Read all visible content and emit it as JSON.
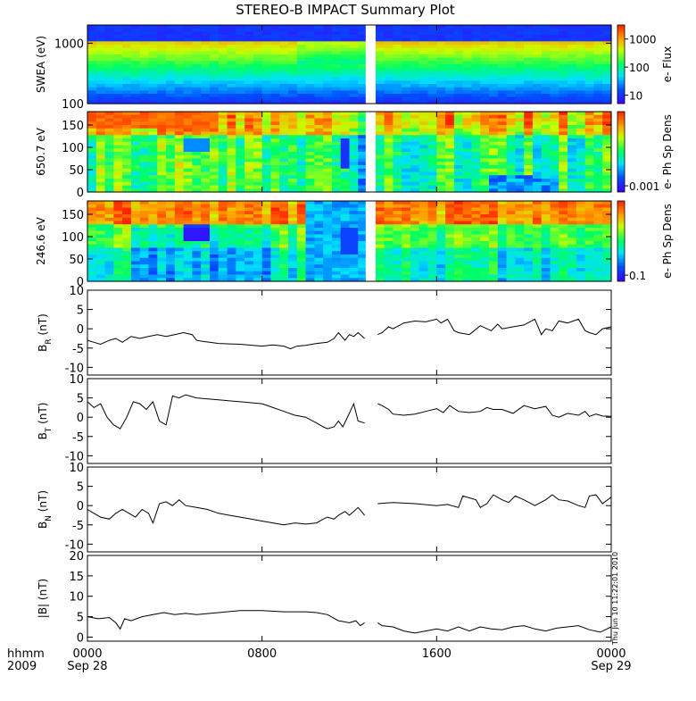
{
  "chart_data": {
    "type": "line",
    "title": "STEREO-B IMPACT Summary Plot",
    "x_axis": {
      "label_lines": [
        "hhmm",
        "2009"
      ],
      "range_hours": [
        0,
        24
      ],
      "ticks": [
        {
          "hour": 0,
          "label": "0000",
          "sublabel": "Sep 28"
        },
        {
          "hour": 8,
          "label": "0800",
          "sublabel": ""
        },
        {
          "hour": 16,
          "label": "1600",
          "sublabel": ""
        },
        {
          "hour": 24,
          "label": "0000",
          "sublabel": "Sep 29"
        }
      ]
    },
    "data_gap_hours": [
      12.75,
      13.2
    ],
    "timestamp": "Thu Jun 10 11:22:01 2010",
    "spectrograms": [
      {
        "ylabel": "SWEA (eV)",
        "yscale": "log",
        "yrange": [
          100,
          2000
        ],
        "yticks": [
          {
            "v": 100,
            "label": "100"
          },
          {
            "v": 1000,
            "label": "1000"
          }
        ],
        "colorbar_label": "e- Flux",
        "colorbar_ticks": [
          {
            "v": 10,
            "label": "10"
          },
          {
            "v": 100,
            "label": "100"
          },
          {
            "v": 1000,
            "label": "1000"
          }
        ],
        "colorbar_range_log": [
          0.7,
          3.5
        ]
      },
      {
        "ylabel": "650.7 eV",
        "yscale": "linear",
        "yrange": [
          0,
          180
        ],
        "yticks": [
          {
            "v": 0,
            "label": "0"
          },
          {
            "v": 50,
            "label": "50"
          },
          {
            "v": 100,
            "label": "100"
          },
          {
            "v": 150,
            "label": "150"
          }
        ],
        "colorbar_label": "e- Ph Sp Dens",
        "colorbar_ticks": [
          {
            "v": 0.001,
            "label": "0.001"
          }
        ],
        "colorbar_range_log": [
          -3.1,
          -1.8
        ]
      },
      {
        "ylabel": "246.6 eV",
        "yscale": "linear",
        "yrange": [
          0,
          180
        ],
        "yticks": [
          {
            "v": 0,
            "label": "0"
          },
          {
            "v": 50,
            "label": "50"
          },
          {
            "v": 100,
            "label": "100"
          },
          {
            "v": 150,
            "label": "150"
          }
        ],
        "colorbar_label": "e- Ph Sp Dens",
        "colorbar_ticks": [
          {
            "v": 0.1,
            "label": "0.1"
          }
        ],
        "colorbar_range_log": [
          -1.1,
          0.2
        ]
      }
    ],
    "line_panels": [
      {
        "ylabel_base": "B",
        "ylabel_sub": "R",
        "ylabel_unit": " (nT)",
        "yrange": [
          -12,
          10
        ],
        "yticks": [
          {
            "v": -10,
            "label": "-10"
          },
          {
            "v": -5,
            "label": "-5"
          },
          {
            "v": 0,
            "label": "0"
          },
          {
            "v": 5,
            "label": "5"
          },
          {
            "v": 10,
            "label": "10"
          }
        ],
        "x": [
          0,
          0.3,
          0.6,
          1,
          1.3,
          1.6,
          2,
          2.4,
          2.8,
          3.2,
          3.6,
          4,
          4.4,
          4.8,
          5,
          5.3,
          5.6,
          6,
          7,
          8,
          8.5,
          9,
          9.3,
          9.6,
          10,
          10.5,
          11,
          11.3,
          11.5,
          11.8,
          12,
          12.2,
          12.4,
          12.7,
          13.3,
          13.5,
          13.8,
          14,
          14.5,
          15,
          15.5,
          16,
          16.2,
          16.5,
          16.8,
          17,
          17.5,
          18,
          18.5,
          18.8,
          19,
          19.5,
          20,
          20.5,
          20.8,
          21,
          21.3,
          21.6,
          22,
          22.5,
          22.8,
          23,
          23.3,
          23.6,
          24
        ],
        "y": [
          -3,
          -3.5,
          -4,
          -3,
          -2.5,
          -3.5,
          -2,
          -2.5,
          -2,
          -1.5,
          -2,
          -1.5,
          -1,
          -1.5,
          -3,
          -3.3,
          -3.5,
          -3.8,
          -4,
          -4.5,
          -4.2,
          -4.5,
          -5.2,
          -4.5,
          -4.3,
          -3.8,
          -3.5,
          -2.5,
          -1,
          -3,
          -1.5,
          -2,
          -1,
          -2.5,
          -1.5,
          -1,
          0.5,
          0,
          1.5,
          2,
          1.8,
          2.5,
          1.5,
          2.5,
          -0.5,
          -1,
          -1.5,
          0.8,
          -0.5,
          1.2,
          0,
          0.5,
          1,
          2.5,
          -1.5,
          0,
          -0.5,
          2,
          1.5,
          2.5,
          -0.5,
          -1,
          -1.5,
          0,
          0.5
        ]
      },
      {
        "ylabel_base": "B",
        "ylabel_sub": "T",
        "ylabel_unit": " (nT)",
        "yrange": [
          -12,
          10
        ],
        "yticks": [
          {
            "v": -10,
            "label": "-10"
          },
          {
            "v": -5,
            "label": "-5"
          },
          {
            "v": 0,
            "label": "0"
          },
          {
            "v": 5,
            "label": "5"
          },
          {
            "v": 10,
            "label": "10"
          }
        ],
        "x": [
          0,
          0.3,
          0.6,
          0.9,
          1.2,
          1.5,
          1.8,
          2.1,
          2.4,
          2.7,
          3,
          3.3,
          3.6,
          3.9,
          4.2,
          4.5,
          5,
          6,
          7,
          8,
          8.5,
          9,
          9.5,
          10,
          10.5,
          10.8,
          11,
          11.3,
          11.5,
          11.7,
          12,
          12.2,
          12.4,
          12.7,
          13.3,
          13.5,
          13.8,
          14,
          14.5,
          15,
          15.5,
          16,
          16.3,
          16.6,
          17,
          17.5,
          18,
          18.3,
          18.6,
          19,
          19.5,
          20,
          20.5,
          21,
          21.3,
          21.6,
          22,
          22.5,
          22.8,
          23,
          23.3,
          23.6,
          24
        ],
        "y": [
          4,
          2.5,
          3.5,
          0,
          -2,
          -3,
          0,
          4,
          3.5,
          2,
          4,
          -1,
          -2,
          5.5,
          5,
          5.8,
          5,
          4.5,
          4,
          3.5,
          2.5,
          1.5,
          0.5,
          0,
          -1.5,
          -2.5,
          -3,
          -2.5,
          -1,
          -2.5,
          1,
          3.5,
          -1,
          -1.5,
          3.5,
          3,
          2,
          0.8,
          0.5,
          0.8,
          1.5,
          2.2,
          1.2,
          3,
          1.5,
          1.2,
          1.5,
          2.5,
          2,
          2,
          1,
          3,
          2.2,
          2.8,
          0.5,
          0,
          1,
          0.5,
          1.5,
          0.2,
          0.8,
          0.3,
          0.2
        ]
      },
      {
        "ylabel_base": "B",
        "ylabel_sub": "N",
        "ylabel_unit": " (nT)",
        "yrange": [
          -12,
          10
        ],
        "yticks": [
          {
            "v": -10,
            "label": "-10"
          },
          {
            "v": -5,
            "label": "-5"
          },
          {
            "v": 0,
            "label": "0"
          },
          {
            "v": 5,
            "label": "5"
          },
          {
            "v": 10,
            "label": "10"
          }
        ],
        "x": [
          0,
          0.3,
          0.6,
          1,
          1.3,
          1.6,
          1.9,
          2.2,
          2.5,
          2.8,
          3,
          3.3,
          3.6,
          3.9,
          4.2,
          4.5,
          5,
          5.5,
          6,
          6.5,
          7,
          7.5,
          8,
          8.5,
          9,
          9.5,
          10,
          10.5,
          10.8,
          11,
          11.3,
          11.5,
          11.8,
          12,
          12.2,
          12.4,
          12.7,
          13.3,
          14,
          15,
          16,
          16.5,
          17,
          17.2,
          17.5,
          17.8,
          18,
          18.3,
          18.6,
          19,
          19.3,
          19.6,
          20,
          20.5,
          21,
          21.3,
          21.6,
          22,
          22.5,
          22.8,
          23,
          23.3,
          23.6,
          24
        ],
        "y": [
          -1,
          -2,
          -3,
          -3.5,
          -2,
          -1,
          -2,
          -3,
          -1,
          -2,
          -4.5,
          0.5,
          1,
          0,
          1.5,
          0,
          -0.5,
          -1,
          -2,
          -2.5,
          -3,
          -3.5,
          -4,
          -4.5,
          -5,
          -4.5,
          -4.8,
          -4.5,
          -3.5,
          -3,
          -3.5,
          -2.5,
          -1.5,
          -2.5,
          -1.5,
          -0.5,
          -2.5,
          0.5,
          0.8,
          0.5,
          0,
          0.3,
          -0.5,
          2.5,
          2,
          1.5,
          -0.5,
          0.5,
          2.8,
          1.5,
          0.8,
          2.5,
          1.5,
          0,
          1.5,
          2.8,
          1.5,
          1.2,
          0,
          -0.5,
          2.5,
          2.8,
          0.5,
          2.2
        ]
      },
      {
        "ylabel_base": "|B|",
        "ylabel_sub": "",
        "ylabel_unit": " (nT)",
        "yrange": [
          -1,
          20
        ],
        "yticks": [
          {
            "v": 0,
            "label": "0"
          },
          {
            "v": 5,
            "label": "5"
          },
          {
            "v": 10,
            "label": "10"
          },
          {
            "v": 15,
            "label": "15"
          },
          {
            "v": 20,
            "label": "20"
          }
        ],
        "x": [
          0,
          0.5,
          1,
          1.3,
          1.5,
          1.7,
          2,
          2.5,
          3,
          3.5,
          4,
          4.5,
          5,
          6,
          7,
          8,
          9,
          10,
          10.5,
          11,
          11.5,
          12,
          12.3,
          12.5,
          12.7,
          13.3,
          13.5,
          14,
          14.5,
          15,
          15.5,
          16,
          16.5,
          17,
          17.5,
          18,
          18.5,
          19,
          19.5,
          20,
          20.5,
          21,
          21.5,
          22,
          22.5,
          23,
          23.5,
          24
        ],
        "y": [
          5,
          4.5,
          4.8,
          3.5,
          2,
          4.5,
          4,
          5,
          5.5,
          6,
          5.5,
          5.8,
          5.5,
          6,
          6.5,
          6.5,
          6.2,
          6.2,
          6,
          5.5,
          4,
          3.5,
          4,
          2.8,
          3.5,
          3.5,
          2.8,
          2.5,
          1.5,
          1,
          1.5,
          2,
          1.5,
          2.5,
          1.5,
          2.5,
          2,
          1.8,
          2.5,
          2.8,
          2,
          1.5,
          2.2,
          2.5,
          2.8,
          1.8,
          1.2,
          2.5
        ]
      }
    ]
  }
}
